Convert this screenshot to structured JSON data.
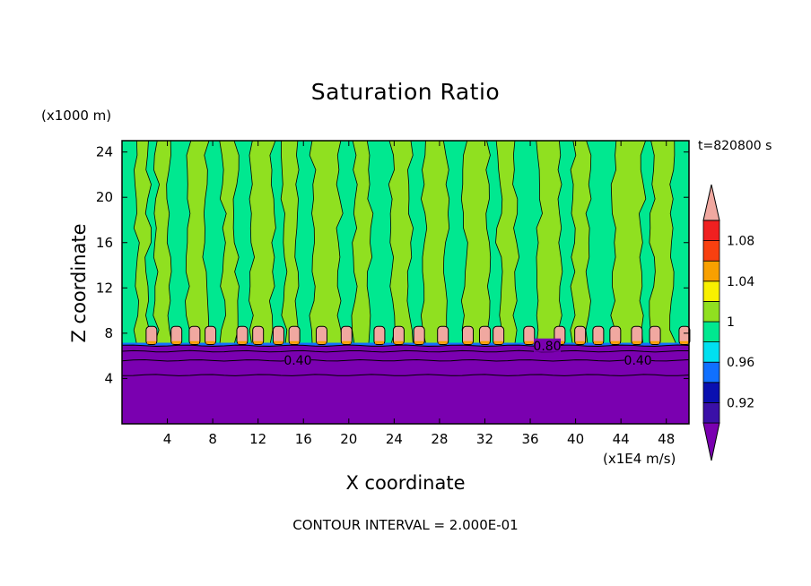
{
  "chart_data": {
    "type": "heatmap",
    "title": "Saturation Ratio",
    "xlabel": "X coordinate",
    "ylabel": "Z coordinate",
    "x_unit": "(x1E4 m/s)",
    "z_unit": "(x1000 m)",
    "time_label": "t=820800 s",
    "footer": "CONTOUR INTERVAL = 2.000E-01",
    "xlim": [
      0,
      50
    ],
    "ylim": [
      0,
      25
    ],
    "x_ticks": [
      4,
      8,
      12,
      16,
      20,
      24,
      28,
      32,
      36,
      40,
      44,
      48
    ],
    "y_ticks": [
      4,
      8,
      12,
      16,
      20,
      24
    ],
    "contour_labels": [
      {
        "text": "0.40",
        "x": 15.5,
        "y": 5.6
      },
      {
        "text": "0.40",
        "x": 45.5,
        "y": 5.6
      },
      {
        "text": "0.80",
        "x": 37.5,
        "y": 6.9
      }
    ],
    "colorbar": {
      "levels": [
        {
          "upper": 0.9,
          "color": "#7a00b0"
        },
        {
          "upper": 0.92,
          "color": "#3a10a8"
        },
        {
          "upper": 0.94,
          "color": "#0a10b0"
        },
        {
          "upper": 0.96,
          "color": "#1070ff"
        },
        {
          "upper": 0.98,
          "color": "#00e0f0"
        },
        {
          "upper": 1.0,
          "color": "#00e890"
        },
        {
          "upper": 1.02,
          "color": "#90e020"
        },
        {
          "upper": 1.04,
          "color": "#f8f000"
        },
        {
          "upper": 1.06,
          "color": "#f8a000"
        },
        {
          "upper": 1.08,
          "color": "#f84010"
        },
        {
          "upper": 1.1,
          "color": "#f02020"
        },
        {
          "upper": "above",
          "color": "#f0a8a0"
        }
      ],
      "tick_labels": [
        "0.92",
        "0.96",
        "1",
        "1.04",
        "1.08"
      ]
    },
    "regions": {
      "lower_color": "#7a00b0",
      "upper_green": "#00e890",
      "upper_lime": "#90e020",
      "cell_color": "#f0a8a0",
      "cloud_base_z": 7.0
    }
  }
}
